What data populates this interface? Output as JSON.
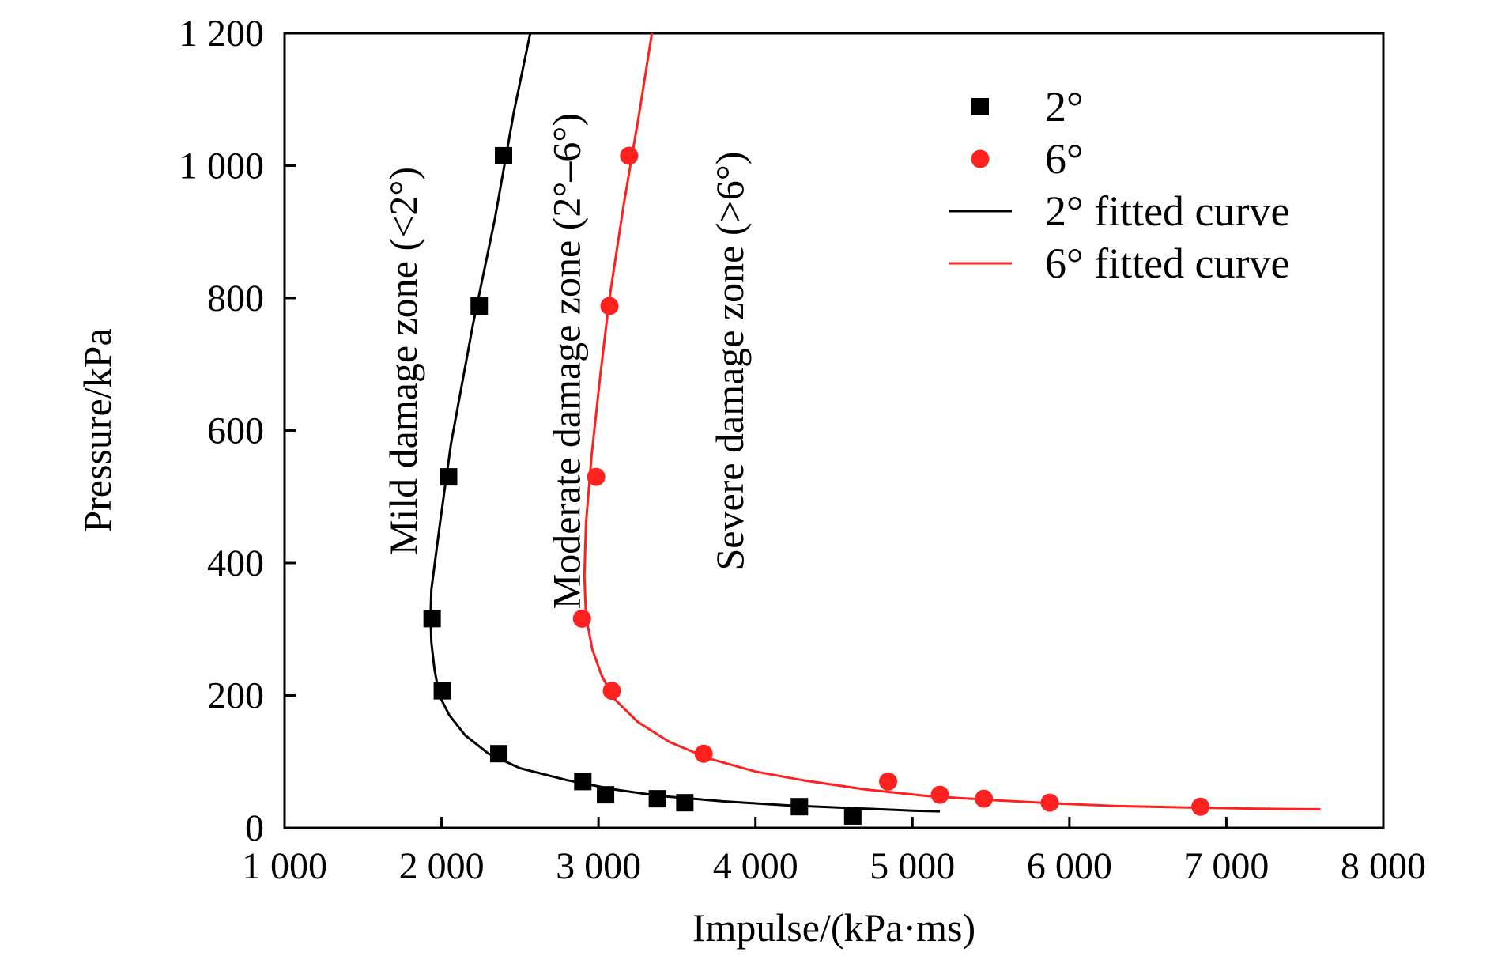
{
  "chart_data": {
    "type": "scatter",
    "xlabel": "Impulse/(kPa·ms)",
    "ylabel": "Pressure/kPa",
    "xlim": [
      1000,
      8000
    ],
    "ylim": [
      0,
      1200
    ],
    "x_ticks": [
      1000,
      2000,
      3000,
      4000,
      5000,
      6000,
      7000,
      8000
    ],
    "x_tick_labels": [
      "1 000",
      "2 000",
      "3 000",
      "4 000",
      "5 000",
      "6 000",
      "7 000",
      "8 000"
    ],
    "y_ticks": [
      0,
      200,
      400,
      600,
      800,
      1000,
      1200
    ],
    "y_tick_labels": [
      "0",
      "200",
      "400",
      "600",
      "800",
      "1 000",
      "1 200"
    ],
    "grid": false,
    "legend_position": "top-right",
    "series": [
      {
        "name": "2°",
        "kind": "scatter",
        "marker": "square",
        "color": "#000000",
        "points": [
          [
            1940,
            316
          ],
          [
            2005,
            207
          ],
          [
            2045,
            530
          ],
          [
            2240,
            788
          ],
          [
            2395,
            1015
          ],
          [
            2365,
            112
          ],
          [
            2900,
            70
          ],
          [
            3045,
            50
          ],
          [
            3375,
            44
          ],
          [
            3550,
            38
          ],
          [
            4280,
            32
          ],
          [
            4620,
            18
          ]
        ]
      },
      {
        "name": "6°",
        "kind": "scatter",
        "marker": "circle",
        "color": "#ff2020",
        "points": [
          [
            2895,
            316
          ],
          [
            2985,
            530
          ],
          [
            3070,
            788
          ],
          [
            3195,
            1015
          ],
          [
            3085,
            207
          ],
          [
            3670,
            112
          ],
          [
            4845,
            70
          ],
          [
            5175,
            50
          ],
          [
            5455,
            44
          ],
          [
            5875,
            38
          ],
          [
            6835,
            32
          ]
        ]
      },
      {
        "name": "2° fitted curve",
        "kind": "line",
        "color": "#000000",
        "points": [
          [
            2565,
            1200
          ],
          [
            2460,
            1080
          ],
          [
            2340,
            920
          ],
          [
            2200,
            760
          ],
          [
            2060,
            580
          ],
          [
            1990,
            460
          ],
          [
            1935,
            360
          ],
          [
            1930,
            320
          ],
          [
            1935,
            280
          ],
          [
            1955,
            240
          ],
          [
            1985,
            200
          ],
          [
            2050,
            170
          ],
          [
            2150,
            140
          ],
          [
            2300,
            112
          ],
          [
            2500,
            90
          ],
          [
            2800,
            72
          ],
          [
            3100,
            58
          ],
          [
            3400,
            48
          ],
          [
            3800,
            40
          ],
          [
            4200,
            34
          ],
          [
            4600,
            30
          ],
          [
            5000,
            26
          ],
          [
            5175,
            25
          ]
        ]
      },
      {
        "name": "6° fitted curve",
        "kind": "line",
        "color": "#ff2020",
        "points": [
          [
            3340,
            1200
          ],
          [
            3260,
            1080
          ],
          [
            3160,
            940
          ],
          [
            3070,
            800
          ],
          [
            3010,
            680
          ],
          [
            2955,
            560
          ],
          [
            2920,
            460
          ],
          [
            2910,
            380
          ],
          [
            2920,
            320
          ],
          [
            2960,
            270
          ],
          [
            3020,
            230
          ],
          [
            3100,
            195
          ],
          [
            3250,
            160
          ],
          [
            3450,
            130
          ],
          [
            3700,
            105
          ],
          [
            4000,
            85
          ],
          [
            4300,
            72
          ],
          [
            4700,
            58
          ],
          [
            5100,
            48
          ],
          [
            5500,
            42
          ],
          [
            5900,
            37
          ],
          [
            6300,
            33
          ],
          [
            6700,
            31
          ],
          [
            7200,
            29
          ],
          [
            7600,
            28
          ]
        ]
      }
    ],
    "annotations": [
      {
        "text": "Mild damage zone (<2°)",
        "x": 1840,
        "y": 705,
        "rotation": -90
      },
      {
        "text": "Moderate damage zone (2°–6°)",
        "x": 2880,
        "y": 705,
        "rotation": -90
      },
      {
        "text": "Severe damage zone (>6°)",
        "x": 3920,
        "y": 705,
        "rotation": -90
      }
    ]
  }
}
